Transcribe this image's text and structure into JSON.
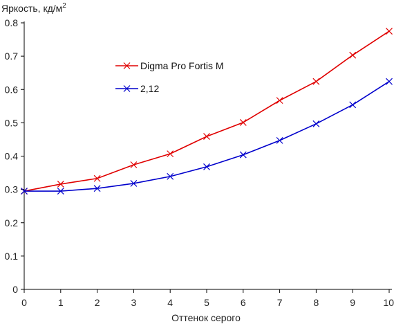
{
  "chart_data": {
    "type": "line",
    "ylabel": "Яркость, кд/м",
    "ylabel_sup": "2",
    "xlabel": "Оттенок серого",
    "x": [
      0,
      1,
      2,
      3,
      4,
      5,
      6,
      7,
      8,
      9,
      10
    ],
    "xlim": [
      0,
      10
    ],
    "ylim": [
      0,
      0.8
    ],
    "x_ticks": [
      "0",
      "1",
      "2",
      "3",
      "4",
      "5",
      "6",
      "7",
      "8",
      "9",
      "10"
    ],
    "y_ticks": [
      "0",
      "0.1",
      "0.2",
      "0.3",
      "0.4",
      "0.5",
      "0.6",
      "0.7",
      "0.8"
    ],
    "y_tick_values": [
      0,
      0.1,
      0.2,
      0.3,
      0.4,
      0.5,
      0.6,
      0.7,
      0.8
    ],
    "grid": false,
    "legend": "upper-left inside plot",
    "series": [
      {
        "name": "Digma Pro Fortis M",
        "color": "#e00000",
        "marker": "x",
        "values": [
          0.295,
          0.316,
          0.333,
          0.374,
          0.407,
          0.459,
          0.501,
          0.567,
          0.624,
          0.703,
          0.775
        ]
      },
      {
        "name": "2,12",
        "color": "#0000cc",
        "marker": "x",
        "values": [
          0.295,
          0.295,
          0.303,
          0.318,
          0.339,
          0.368,
          0.404,
          0.447,
          0.497,
          0.554,
          0.624
        ]
      }
    ]
  }
}
